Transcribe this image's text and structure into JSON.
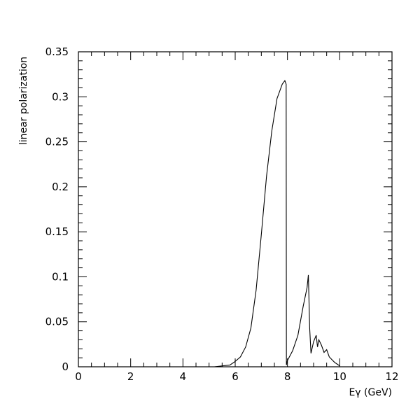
{
  "chart_data": {
    "type": "line",
    "xlabel": "Eγ (GeV)",
    "ylabel": "linear polarization",
    "xlim": [
      0,
      12
    ],
    "ylim": [
      0,
      0.35
    ],
    "grid": false,
    "x_ticks": [
      "0",
      "2",
      "4",
      "6",
      "8",
      "10",
      "12"
    ],
    "y_ticks": [
      "0",
      "0.05",
      "0.1",
      "0.15",
      "0.2",
      "0.25",
      "0.3",
      "0.35"
    ],
    "series": [
      {
        "x": [
          5.2,
          5.8,
          6.0,
          6.2,
          6.4,
          6.6,
          6.8,
          7.0,
          7.2,
          7.4,
          7.6,
          7.8,
          7.9,
          7.95,
          7.96,
          8.0,
          8.2,
          8.4,
          8.6,
          8.75,
          8.8,
          8.85,
          8.9,
          9.0,
          9.1,
          9.15,
          9.2,
          9.3,
          9.4,
          9.5,
          9.6,
          9.7,
          9.8,
          9.9,
          10.0
        ],
        "y": [
          0.0,
          0.002,
          0.006,
          0.011,
          0.022,
          0.043,
          0.085,
          0.147,
          0.212,
          0.262,
          0.298,
          0.314,
          0.318,
          0.314,
          0.002,
          0.007,
          0.018,
          0.035,
          0.067,
          0.088,
          0.102,
          0.043,
          0.015,
          0.028,
          0.035,
          0.022,
          0.03,
          0.024,
          0.016,
          0.019,
          0.011,
          0.008,
          0.005,
          0.003,
          0.001
        ]
      }
    ]
  }
}
